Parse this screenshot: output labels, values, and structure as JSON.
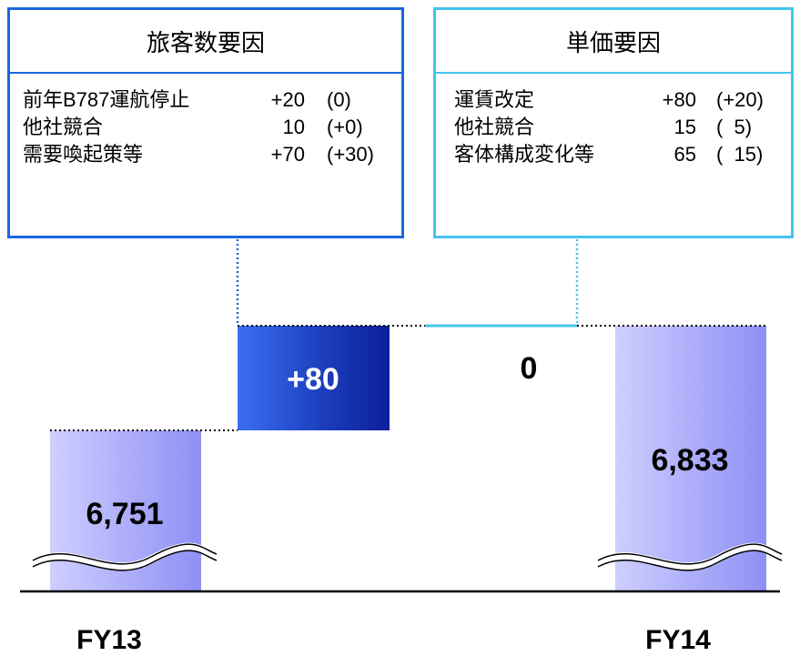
{
  "factors": {
    "passenger": {
      "title": "旅客数要因",
      "rows": [
        {
          "label": "前年B787運航停止",
          "value": "+20",
          "note": "(0)"
        },
        {
          "label": "他社競合",
          "value": "10",
          "note": "(+0)"
        },
        {
          "label": "需要喚起策等",
          "value": "+70",
          "note": "(+30)"
        }
      ]
    },
    "price": {
      "title": "単価要因",
      "rows": [
        {
          "label": "運賃改定",
          "value": "+80",
          "note": "(+20)"
        },
        {
          "label": "他社競合",
          "value": "15",
          "note": "(  5)"
        },
        {
          "label": "客体構成変化等",
          "value": "65",
          "note": "(  15)"
        }
      ]
    }
  },
  "chart_data": {
    "type": "bar",
    "subtype": "waterfall",
    "categories": [
      "FY13",
      "旅客数要因",
      "単価要因",
      "FY14"
    ],
    "values": [
      6751,
      80,
      0,
      6833
    ],
    "bar_labels": [
      "6,751",
      "+80",
      "0",
      "6,833"
    ],
    "axis_break": true,
    "colors": {
      "total": "#9e9ef5",
      "passenger": "#1c3fbf",
      "price": "#3cc0e6",
      "passenger_border": "#1a66e0",
      "price_border": "#44c4ec"
    }
  }
}
